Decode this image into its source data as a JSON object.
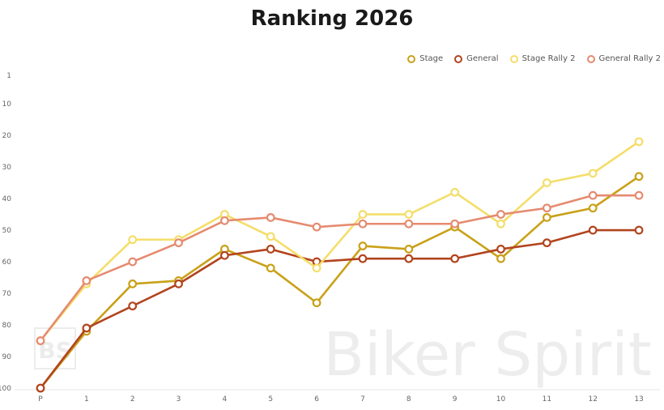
{
  "chart_data": {
    "type": "line",
    "title": "Ranking 2026",
    "categories": [
      "P",
      "1",
      "2",
      "3",
      "4",
      "5",
      "6",
      "7",
      "8",
      "9",
      "10",
      "11",
      "12",
      "13"
    ],
    "y_ticks": [
      "1",
      "10",
      "20",
      "30",
      "40",
      "50",
      "60",
      "70",
      "80",
      "90",
      "100"
    ],
    "ylim": [
      100,
      1
    ],
    "y_inverted": true,
    "grid": false,
    "legend_position": "top-right",
    "series": [
      {
        "name": "Stage",
        "color": "#c9a118",
        "values": [
          100,
          82,
          67,
          66,
          56,
          62,
          73,
          55,
          56,
          49,
          59,
          46,
          43,
          33
        ]
      },
      {
        "name": "General",
        "color": "#b2441e",
        "values": [
          100,
          81,
          74,
          67,
          58,
          56,
          60,
          59,
          59,
          59,
          56,
          54,
          50,
          50
        ]
      },
      {
        "name": "Stage Rally 2",
        "color": "#f4de6a",
        "values": [
          85,
          67,
          53,
          53,
          45,
          52,
          62,
          45,
          45,
          38,
          48,
          35,
          32,
          22
        ]
      },
      {
        "name": "General Rally 2",
        "color": "#e58b70",
        "values": [
          85,
          66,
          60,
          54,
          47,
          46,
          49,
          48,
          48,
          48,
          45,
          43,
          39,
          39
        ]
      }
    ]
  },
  "watermark": {
    "logo_text": "BS",
    "brand_text": "Biker Spirit"
  }
}
